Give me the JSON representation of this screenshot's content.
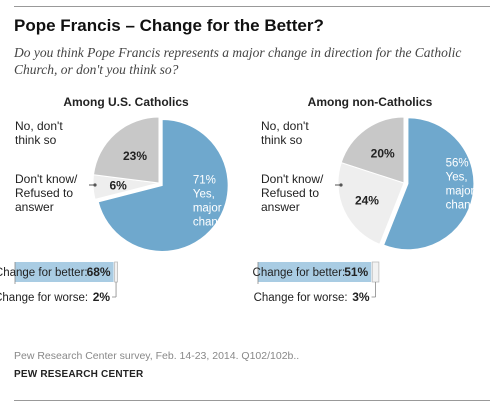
{
  "title": "Pope Francis – Change for the Better?",
  "subtitle": "Do you think Pope Francis represents a major change in direction for the Catholic Church, or don't you think so?",
  "source": "Pew Research Center survey, Feb. 14-23, 2014. Q102/102b..",
  "org": "PEW RESEARCH CENTER",
  "colors": {
    "major_change": "#6fa8cd",
    "no_change": "#c8c8c8",
    "dont_know": "#eeeeee",
    "bar_better": "#a9cce3",
    "text_on_blue": "#ffffff"
  },
  "chart_data": [
    {
      "type": "pie",
      "title": "Among U.S. Catholics",
      "slices": [
        {
          "label_lines": [
            "71%",
            "Yes,",
            "major",
            "change"
          ],
          "value": 71
        },
        {
          "label_lines": [
            "No, don't",
            "think so"
          ],
          "value_label": "23%",
          "value": 23
        },
        {
          "label_lines": [
            "Don't know/",
            "Refused to",
            "answer"
          ],
          "value_label": "6%",
          "value": 6
        }
      ],
      "followup": [
        {
          "label": "Change for better:",
          "value_label": "68%",
          "value": 68
        },
        {
          "label": "Change for worse:",
          "value_label": "2%",
          "value": 2
        }
      ]
    },
    {
      "type": "pie",
      "title": "Among non-Catholics",
      "slices": [
        {
          "label_lines": [
            "56%",
            "Yes,",
            "major",
            "change"
          ],
          "value": 56
        },
        {
          "label_lines": [
            "No, don't",
            "think so"
          ],
          "value_label": "20%",
          "value": 20
        },
        {
          "label_lines": [
            "Don't know/",
            "Refused to",
            "answer"
          ],
          "value_label": "24%",
          "value": 24
        }
      ],
      "followup": [
        {
          "label": "Change for better:",
          "value_label": "51%",
          "value": 51
        },
        {
          "label": "Change for worse:",
          "value_label": "3%",
          "value": 3
        }
      ]
    }
  ]
}
